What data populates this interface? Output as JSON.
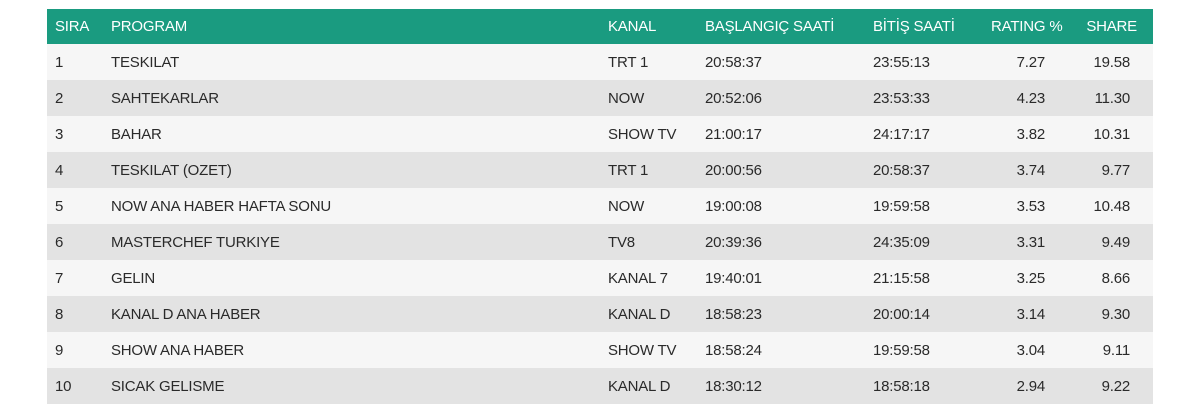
{
  "table": {
    "header": [
      "SIRA",
      "PROGRAM",
      "KANAL",
      "BAŞLANGIÇ SAATİ",
      "BİTİŞ SAATİ",
      "RATING %",
      "SHARE"
    ],
    "rows": [
      [
        "1",
        "TESKILAT",
        "TRT 1",
        "20:58:37",
        "23:55:13",
        "7.27",
        "19.58"
      ],
      [
        "2",
        "SAHTEKARLAR",
        "NOW",
        "20:52:06",
        "23:53:33",
        "4.23",
        "11.30"
      ],
      [
        "3",
        "BAHAR",
        "SHOW TV",
        "21:00:17",
        "24:17:17",
        "3.82",
        "10.31"
      ],
      [
        "4",
        "TESKILAT (OZET)",
        "TRT 1",
        "20:00:56",
        "20:58:37",
        "3.74",
        "9.77"
      ],
      [
        "5",
        "NOW ANA HABER HAFTA SONU",
        "NOW",
        "19:00:08",
        "19:59:58",
        "3.53",
        "10.48"
      ],
      [
        "6",
        "MASTERCHEF TURKIYE",
        "TV8",
        "20:39:36",
        "24:35:09",
        "3.31",
        "9.49"
      ],
      [
        "7",
        "GELIN",
        "KANAL 7",
        "19:40:01",
        "21:15:58",
        "3.25",
        "8.66"
      ],
      [
        "8",
        "KANAL D ANA HABER",
        "KANAL D",
        "18:58:23",
        "20:00:14",
        "3.14",
        "9.30"
      ],
      [
        "9",
        "SHOW ANA HABER",
        "SHOW TV",
        "18:58:24",
        "19:59:58",
        "3.04",
        "9.11"
      ],
      [
        "10",
        "SICAK GELISME",
        "KANAL D",
        "18:30:12",
        "18:58:18",
        "2.94",
        "9.22"
      ]
    ]
  }
}
